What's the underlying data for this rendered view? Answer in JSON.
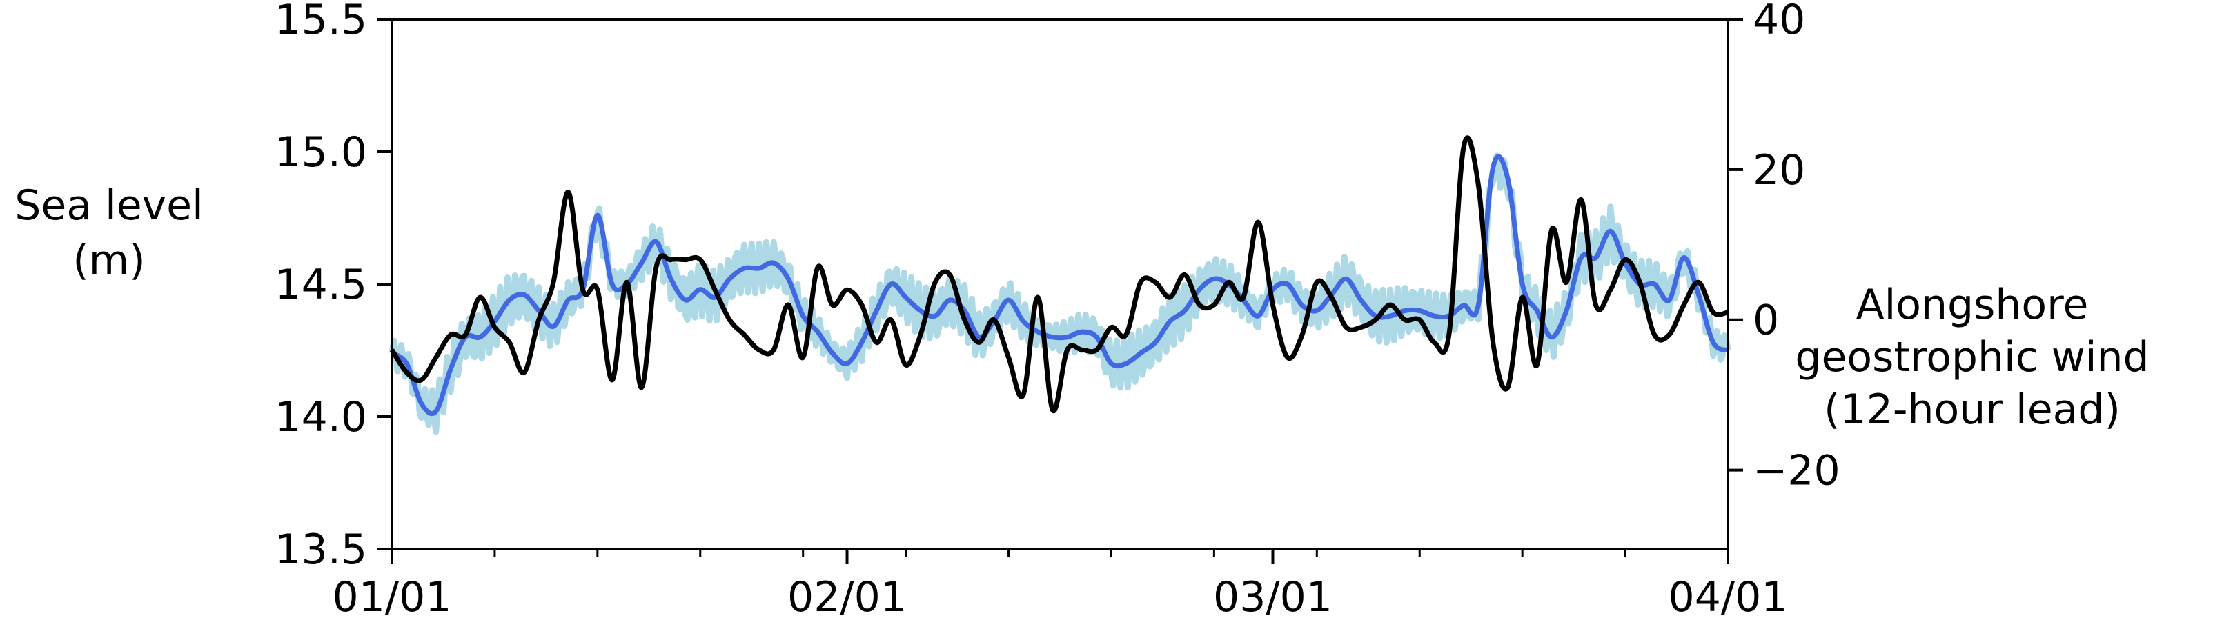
{
  "chart_data": {
    "type": "line",
    "title": "",
    "xlabel": "",
    "ylabel_left": [
      "Sea level",
      "(m)"
    ],
    "ylabel_right": [
      "Alongshore",
      "geostrophic wind",
      "(12-hour lead)"
    ],
    "x_ticks": [
      "01/01",
      "02/01",
      "03/01",
      "04/01"
    ],
    "x_tick_days": [
      0,
      31,
      60,
      91
    ],
    "x_range_days": [
      0,
      91
    ],
    "ylim_left": [
      13.5,
      15.5
    ],
    "y_ticks_left": [
      "13.5",
      "14.0",
      "14.5",
      "15.0",
      "15.5"
    ],
    "ylim_right": [
      -30.5,
      40
    ],
    "y_ticks_right": [
      "−20",
      "0",
      "20",
      "40"
    ],
    "y_tick_values_right": [
      -20,
      0,
      20,
      40
    ],
    "grid": false,
    "legend": "none",
    "colors": {
      "sea_level_hourly": "#add8e6",
      "sea_level_smoothed": "#4169e1",
      "wind": "#000000"
    },
    "series": [
      {
        "axis": "left",
        "x_days": [
          0,
          1,
          2,
          3,
          4,
          5,
          6,
          7,
          8,
          9,
          10,
          11,
          12,
          13,
          14,
          15,
          16,
          17,
          18,
          19,
          20,
          21,
          22,
          23,
          24,
          25,
          26,
          27,
          28,
          29,
          30,
          31,
          32,
          33,
          34,
          35,
          36,
          37,
          38,
          39,
          40,
          41,
          42,
          43,
          44,
          45,
          46,
          47,
          48,
          49,
          50,
          51,
          52,
          53,
          54,
          55,
          56,
          57,
          58,
          59,
          60,
          61,
          62,
          63,
          64,
          65,
          66,
          67,
          68,
          69,
          70,
          71,
          72,
          73,
          74,
          75,
          76,
          77,
          78,
          79,
          80,
          81,
          82,
          83,
          84,
          85,
          86,
          87,
          88,
          89,
          90,
          91
        ],
        "values": [
          14.24,
          14.2,
          14.05,
          14.02,
          14.18,
          14.3,
          14.3,
          14.36,
          14.44,
          14.46,
          14.4,
          14.34,
          14.44,
          14.48,
          14.76,
          14.5,
          14.5,
          14.58,
          14.66,
          14.52,
          14.44,
          14.48,
          14.45,
          14.52,
          14.56,
          14.56,
          14.58,
          14.52,
          14.38,
          14.32,
          14.24,
          14.2,
          14.28,
          14.4,
          14.5,
          14.45,
          14.4,
          14.38,
          14.44,
          14.4,
          14.3,
          14.36,
          14.44,
          14.36,
          14.32,
          14.3,
          14.3,
          14.32,
          14.3,
          14.2,
          14.2,
          14.24,
          14.28,
          14.36,
          14.4,
          14.48,
          14.52,
          14.5,
          14.44,
          14.38,
          14.48,
          14.5,
          14.42,
          14.4,
          14.46,
          14.52,
          14.44,
          14.38,
          14.38,
          14.4,
          14.4,
          14.38,
          14.38,
          14.42,
          14.42,
          14.94,
          14.9,
          14.5,
          14.4,
          14.3,
          14.4,
          14.6,
          14.6,
          14.7,
          14.58,
          14.5,
          14.5,
          14.44,
          14.6,
          14.46,
          14.28,
          14.25
        ]
      },
      {
        "axis": "right",
        "x_days": [
          0,
          1,
          2,
          3,
          4,
          5,
          6,
          7,
          8,
          9,
          10,
          11,
          12,
          13,
          14,
          15,
          16,
          17,
          18,
          19,
          20,
          21,
          22,
          23,
          24,
          25,
          26,
          27,
          28,
          29,
          30,
          31,
          32,
          33,
          34,
          35,
          36,
          37,
          38,
          39,
          40,
          41,
          42,
          43,
          44,
          45,
          46,
          47,
          48,
          49,
          50,
          51,
          52,
          53,
          54,
          55,
          56,
          57,
          58,
          59,
          60,
          61,
          62,
          63,
          64,
          65,
          66,
          67,
          68,
          69,
          70,
          71,
          72,
          73,
          74,
          75,
          76,
          77,
          78,
          79,
          80,
          81,
          82,
          83,
          84,
          85,
          86,
          87,
          88,
          89,
          90,
          91
        ],
        "values": [
          -4,
          -7,
          -8,
          -5,
          -2,
          -2,
          3,
          -1,
          -3,
          -7,
          0,
          5,
          17,
          4,
          4,
          -8,
          5,
          -9,
          7,
          8,
          8,
          8,
          4,
          0,
          -2,
          -4,
          -4,
          2,
          -5,
          7,
          2,
          4,
          2,
          -3,
          0,
          -6,
          -2,
          5,
          6,
          0,
          -3,
          0,
          -5,
          -10,
          3,
          -12,
          -4,
          -4,
          -4,
          -1,
          -2,
          5,
          5,
          3,
          6,
          2,
          2,
          5,
          3,
          13,
          2,
          -5,
          -2,
          5,
          3,
          -1,
          -1,
          0,
          2,
          0,
          0,
          -3,
          -2,
          23,
          18,
          -3,
          -9,
          3,
          -6,
          12,
          5,
          16,
          2,
          4,
          8,
          5,
          -2,
          -2,
          2,
          5,
          1,
          1
        ]
      }
    ]
  }
}
